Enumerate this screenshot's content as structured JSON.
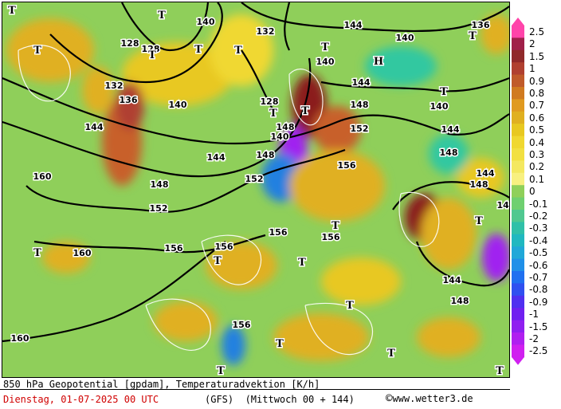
{
  "map": {
    "title": "850 hPa Geopotential [gpdam], Temperaturadvektion [K/h]",
    "date": "Dienstag, 01-07-2025  00 UTC",
    "model": "(GFS)",
    "forecast": "(Mittwoch 00 + 144)",
    "credit": "www.wetter3.de",
    "credit_symbol": "©",
    "contour_labels": [
      "128",
      "132",
      "136",
      "140",
      "144",
      "148",
      "152",
      "156",
      "160"
    ],
    "pressure_centers": [
      "T",
      "H"
    ],
    "colors": {
      "strong_warm": "#8b1a1a",
      "warm": "#c8602a",
      "mild_warm": "#e0b020",
      "neutral": "#8fcf5a",
      "mild_cold": "#30c8a0",
      "cold": "#2080e0",
      "strong_cold": "#a020f0"
    }
  },
  "legend": {
    "labels": [
      "2.5",
      "2",
      "1.5",
      "1",
      "0.9",
      "0.8",
      "0.7",
      "0.6",
      "0.5",
      "0.4",
      "0.3",
      "0.2",
      "0.1",
      "0",
      "-0.1",
      "-0.2",
      "-0.3",
      "-0.4",
      "-0.5",
      "-0.6",
      "-0.7",
      "-0.8",
      "-0.9",
      "-1",
      "-1.5",
      "-2",
      "-2.5"
    ],
    "colors": [
      "#ff44aa",
      "#a0204a",
      "#902a2a",
      "#b04030",
      "#c05a2a",
      "#d07a20",
      "#e09a20",
      "#e0b020",
      "#e8c820",
      "#f0d830",
      "#f2e040",
      "#f4e860",
      "#f8f080",
      "#8fd05a",
      "#6fd070",
      "#50c890",
      "#30c0a8",
      "#20b8c0",
      "#20a8d8",
      "#2090e8",
      "#2070f0",
      "#3050f0",
      "#5030f0",
      "#7020f0",
      "#9020f0",
      "#b020f0",
      "#d020f0"
    ]
  }
}
